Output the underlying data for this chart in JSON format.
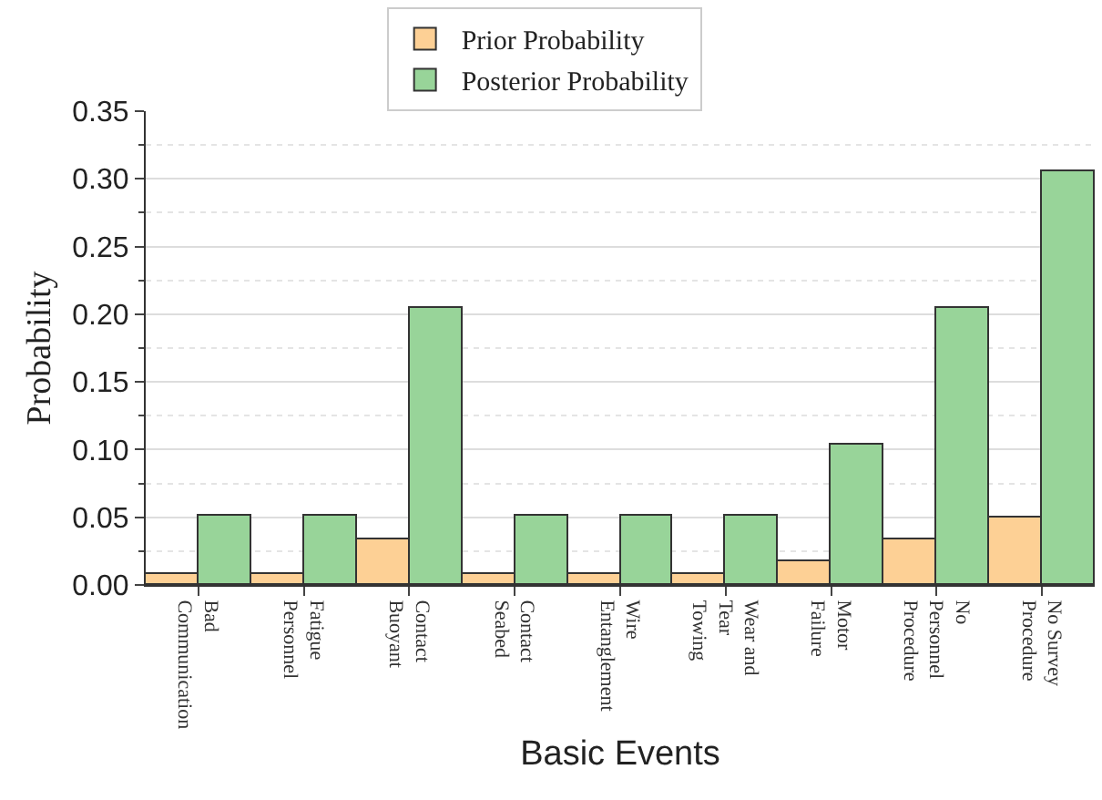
{
  "chart_data": {
    "type": "bar",
    "xlabel": "Basic Events",
    "ylabel": "Probability",
    "categories": [
      "Bad\nCommunication",
      "Fatigue\nPersonnel",
      "Contact\nBuoyant",
      "Contact\nSeabed",
      "Wire\nEntanglement",
      "Wear and\nTear\nTowing",
      "Motor\nFailure",
      "No\nPersonnel\nProcedure",
      "No Survey\nProcedure"
    ],
    "series": [
      {
        "name": "Prior Probability",
        "color": "#fdd095",
        "values": [
          0.008,
          0.008,
          0.034,
          0.008,
          0.008,
          0.008,
          0.017,
          0.034,
          0.05
        ]
      },
      {
        "name": "Posterior Probability",
        "color": "#98d499",
        "values": [
          0.051,
          0.051,
          0.205,
          0.051,
          0.051,
          0.051,
          0.104,
          0.205,
          0.305
        ]
      }
    ],
    "ylim": [
      0,
      0.35
    ],
    "yticks": [
      {
        "value": 0,
        "label": "0.00"
      },
      {
        "value": 0.05,
        "label": "0.05"
      },
      {
        "value": 0.1,
        "label": "0.10"
      },
      {
        "value": 0.15,
        "label": "0.15"
      },
      {
        "value": 0.2,
        "label": "0.20"
      },
      {
        "value": 0.25,
        "label": "0.25"
      },
      {
        "value": 0.3,
        "label": "0.30"
      },
      {
        "value": 0.35,
        "label": "0.35"
      }
    ],
    "grid": "y",
    "legend": "top"
  }
}
